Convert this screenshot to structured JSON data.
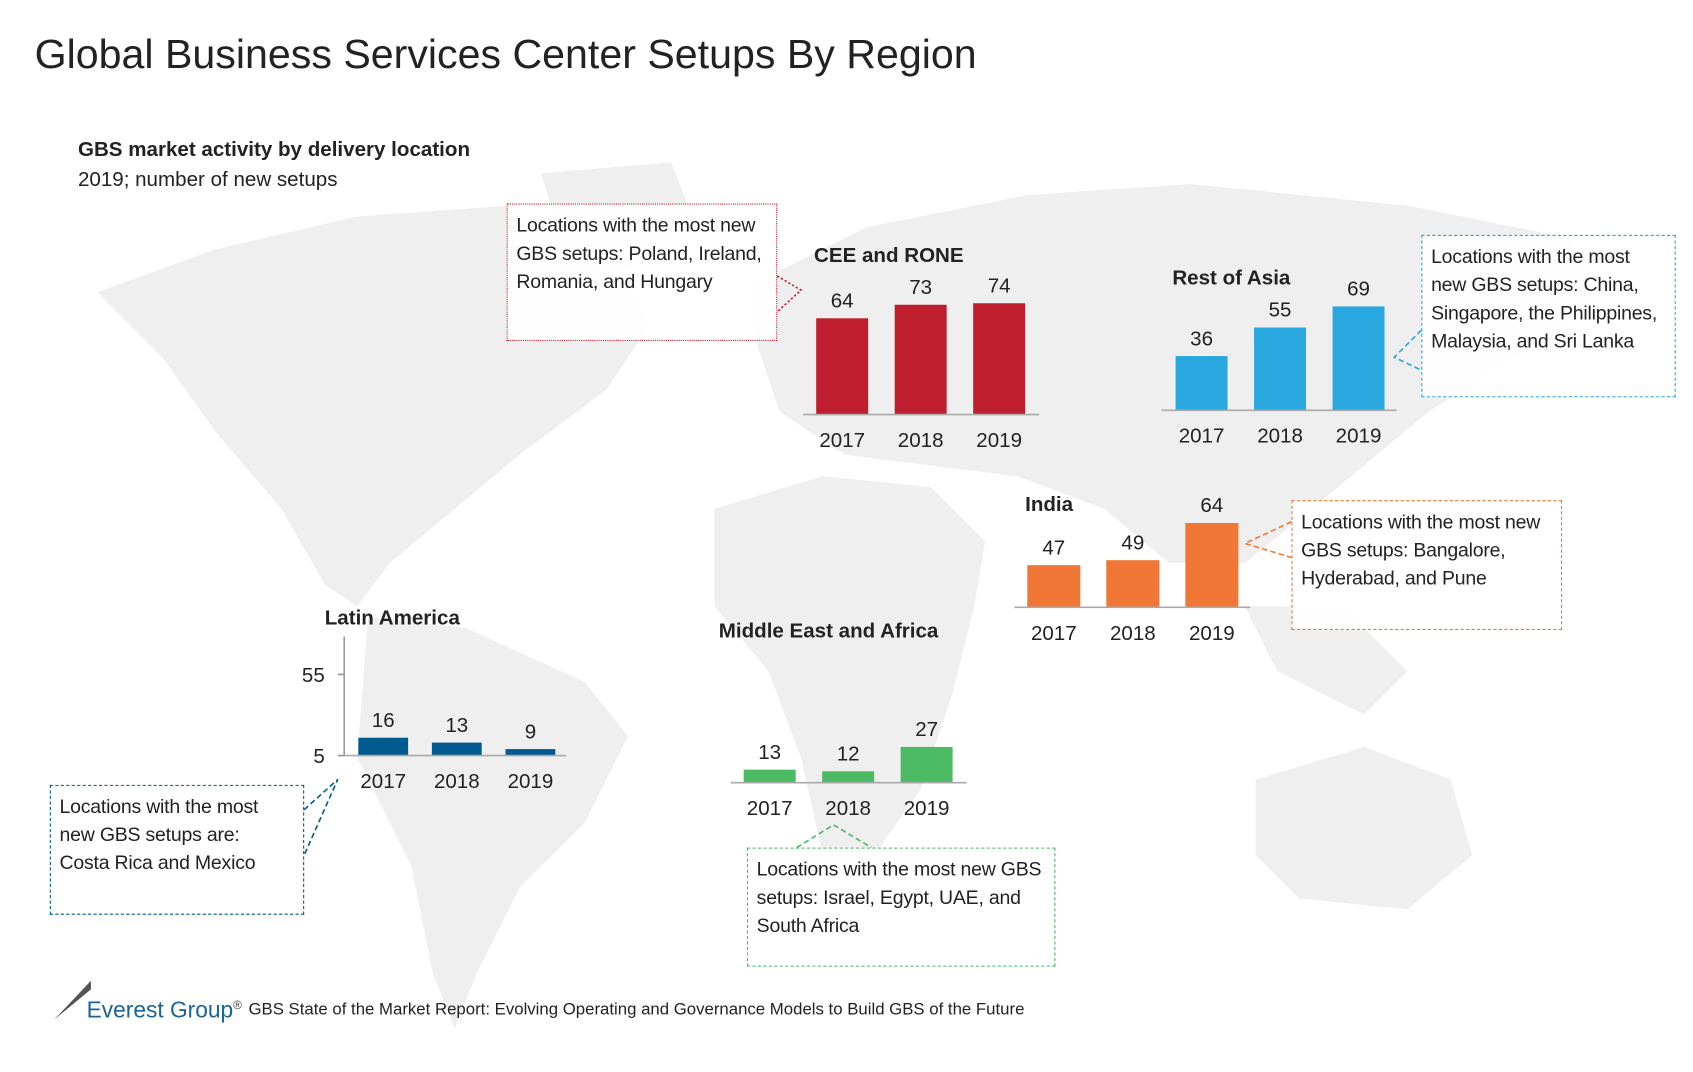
{
  "title": "Global Business Services Center Setups By Region",
  "subtitle": "GBS market activity by delivery location",
  "subtitle2": "2019; number of new setups",
  "colors": {
    "cee": "#be1e2d",
    "asia": "#29a8e0",
    "india": "#f07735",
    "latam": "#005b8e",
    "mea": "#4cb963",
    "map": "#efefef"
  },
  "chart_data": [
    {
      "type": "bar",
      "title": "CEE and RONE",
      "categories": [
        "2017",
        "2018",
        "2019"
      ],
      "values": [
        64,
        73,
        74
      ],
      "ylim": [
        0,
        74
      ]
    },
    {
      "type": "bar",
      "title": "Rest of Asia",
      "categories": [
        "2017",
        "2018",
        "2019"
      ],
      "values": [
        36,
        55,
        69
      ],
      "ylim": [
        0,
        69
      ]
    },
    {
      "type": "bar",
      "title": "India",
      "categories": [
        "2017",
        "2018",
        "2019"
      ],
      "values": [
        47,
        49,
        64
      ],
      "ylim": [
        30,
        64
      ]
    },
    {
      "type": "bar",
      "title": "Latin America",
      "categories": [
        "2017",
        "2018",
        "2019"
      ],
      "values": [
        16,
        13,
        9
      ],
      "ylim": [
        5,
        55
      ],
      "yticks": [
        "55",
        "5"
      ]
    },
    {
      "type": "bar",
      "title": "Middle East and Africa",
      "categories": [
        "2017",
        "2018",
        "2019"
      ],
      "values": [
        13,
        12,
        27
      ],
      "ylim": [
        5,
        27
      ]
    }
  ],
  "callouts": {
    "cee": "Locations with the most new GBS setups: Poland, Ireland, Romania, and Hungary",
    "asia": "Locations with the most new GBS setups: China, Singapore, the Philippines, Malaysia, and Sri Lanka",
    "india": "Locations with the most new GBS setups: Bangalore, Hyderabad, and Pune",
    "latam": "Locations with the most new GBS setups are: Costa Rica and Mexico",
    "mea": "Locations with the most new GBS setups: Israel, Egypt, UAE, and South Africa"
  },
  "footer": {
    "brand": "Everest Group",
    "reg": "®",
    "report": "GBS State of the Market Report: Evolving Operating and Governance Models to Build GBS of the Future"
  }
}
